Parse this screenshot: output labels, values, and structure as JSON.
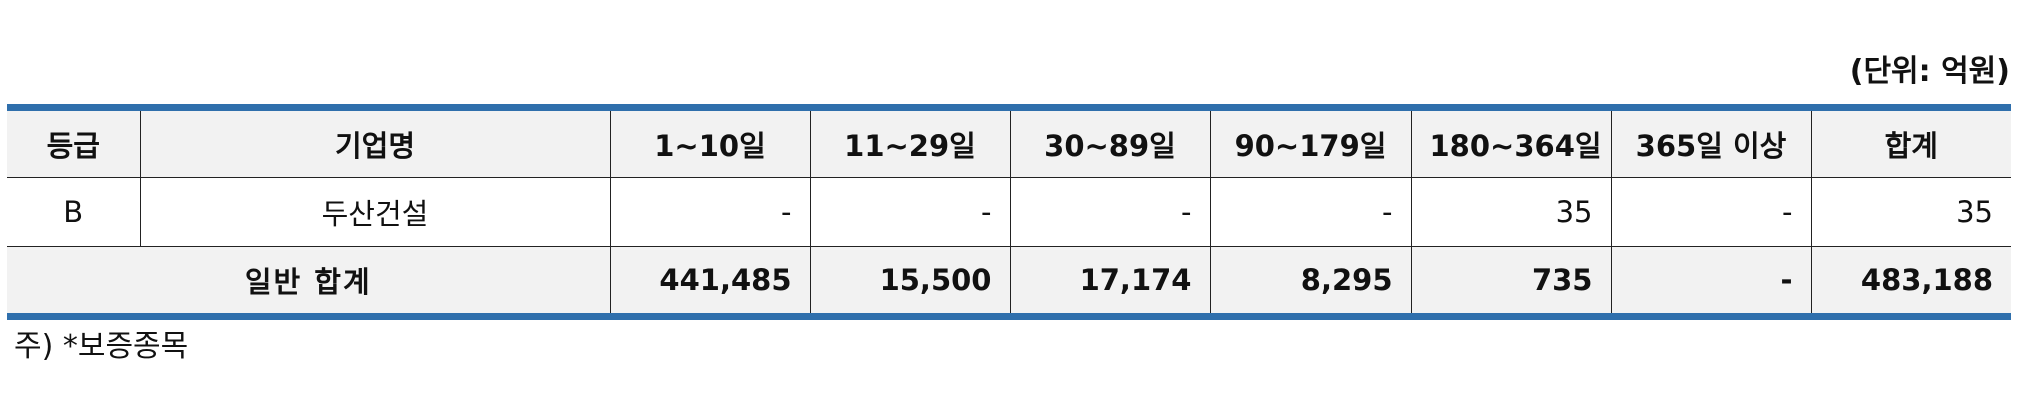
{
  "unit_label": "(단위: 억원)",
  "table": {
    "headers": [
      "등급",
      "기업명",
      "1~10일",
      "11~29일",
      "30~89일",
      "90~179일",
      "180~364일",
      "365일 이상",
      "합계"
    ],
    "rows": [
      {
        "grade": "B",
        "company": "두산건설",
        "cells": [
          "-",
          "-",
          "-",
          "-",
          "35",
          "-",
          "35"
        ]
      }
    ],
    "total": {
      "label": "일반 합계",
      "cells": [
        "441,485",
        "15,500",
        "17,174",
        "8,295",
        "735",
        "-",
        "483,188"
      ]
    }
  },
  "footnote": "주) *보증종목"
}
